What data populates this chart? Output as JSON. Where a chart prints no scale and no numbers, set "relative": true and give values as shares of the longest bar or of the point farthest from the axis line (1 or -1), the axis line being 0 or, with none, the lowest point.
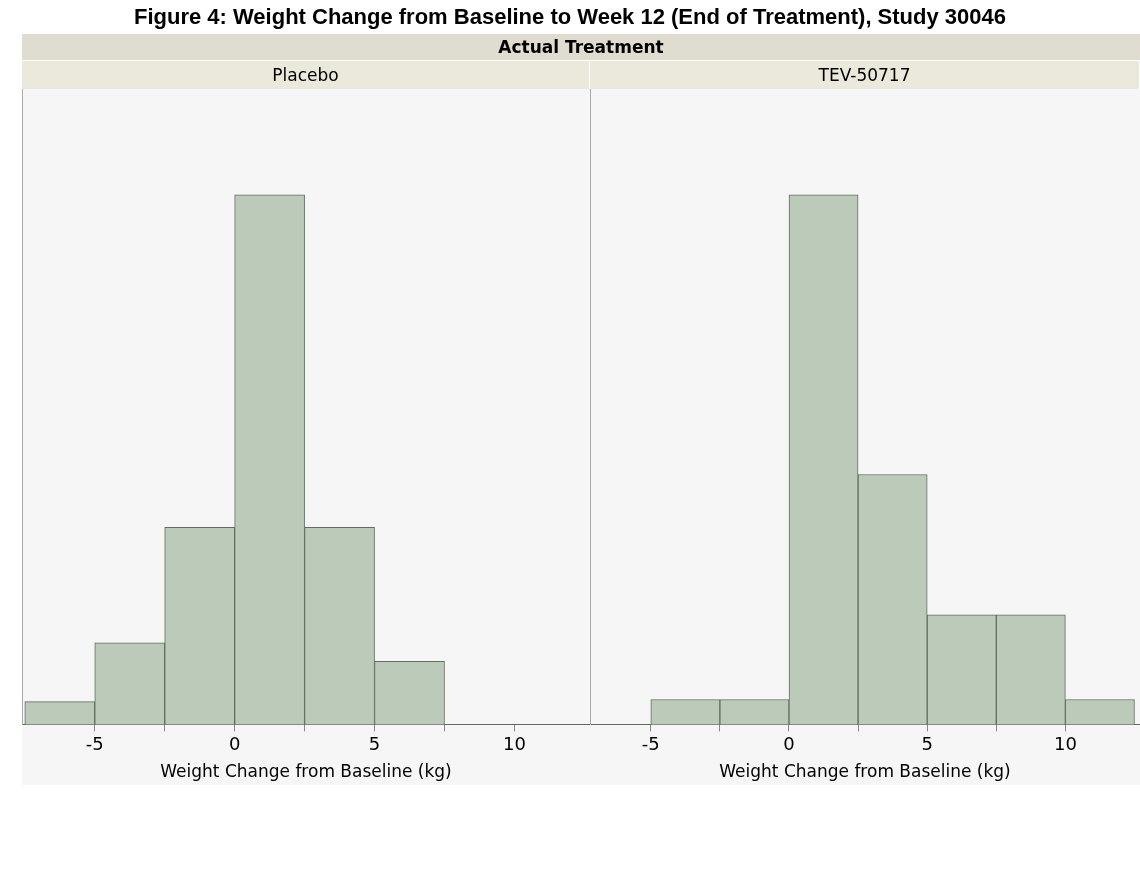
{
  "chart_data": [
    {
      "type": "other",
      "title": "Figure 4: Weight Change from Baseline to Week 12 (End of Treatment), Study 30046",
      "subtitle": "Actual Treatment"
    },
    {
      "type": "bar",
      "title": "Placebo",
      "xlabel": "Weight Change from Baseline (kg)",
      "relative": true,
      "color": "#bccaba",
      "x": [
        -6.25,
        -3.75,
        -1.25,
        1.25,
        3.75,
        6.25
      ],
      "values": [
        0.043,
        0.154,
        0.372,
        1,
        0.372,
        0.119
      ],
      "xlim": [
        -7.6,
        12.7
      ],
      "xticks": [
        -5,
        {
          "value": -2.5,
          "label": null
        },
        0,
        {
          "value": 2.5,
          "label": null
        },
        5,
        {
          "value": 7.5,
          "label": null
        },
        10
      ]
    },
    {
      "type": "bar",
      "title": "TEV-50717",
      "xlabel": "Weight Change from Baseline (kg)",
      "relative": true,
      "color": "#bccaba",
      "x": [
        -3.75,
        -1.25,
        1.25,
        3.75,
        6.25,
        8.75,
        11.25
      ],
      "values": [
        0.047,
        0.047,
        1,
        0.472,
        0.207,
        0.207,
        0.047
      ],
      "xlim": [
        -7.2,
        12.7
      ],
      "xticks": [
        -5,
        {
          "value": -2.5,
          "label": null
        },
        0,
        {
          "value": 2.5,
          "label": null
        },
        5,
        {
          "value": 7.5,
          "label": null
        },
        10
      ]
    }
  ]
}
